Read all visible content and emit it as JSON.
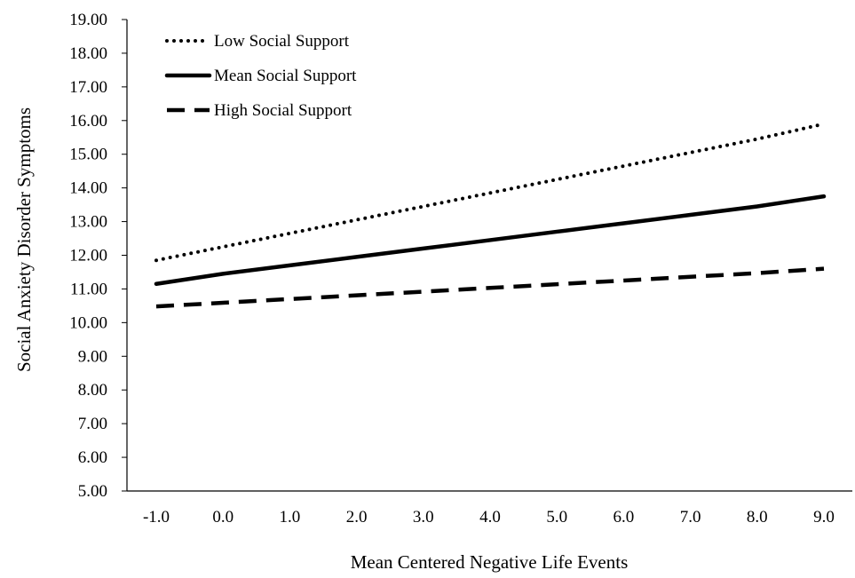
{
  "chart_data": {
    "type": "line",
    "title": "",
    "xlabel": "Mean Centered Negative Life Events",
    "ylabel": "Social Anxiety Disorder Symptoms",
    "x": [
      -1.0,
      0.0,
      1.0,
      2.0,
      3.0,
      4.0,
      5.0,
      6.0,
      7.0,
      8.0,
      9.0
    ],
    "x_tick_labels": [
      "-1.0",
      "0.0",
      "1.0",
      "2.0",
      "3.0",
      "4.0",
      "5.0",
      "6.0",
      "7.0",
      "8.0",
      "9.0"
    ],
    "y_tick_labels": [
      "5.00",
      "6.00",
      "7.00",
      "8.00",
      "9.00",
      "10.00",
      "11.00",
      "12.00",
      "13.00",
      "14.00",
      "15.00",
      "16.00",
      "17.00",
      "18.00",
      "19.00"
    ],
    "ylim": [
      5,
      19
    ],
    "grid": false,
    "legend_position": "top-left",
    "series": [
      {
        "name": "Low Social Support",
        "style": "dotted",
        "color": "#000000",
        "values": [
          11.85,
          12.25,
          12.65,
          13.05,
          13.45,
          13.85,
          14.25,
          14.65,
          15.05,
          15.45,
          15.9
        ]
      },
      {
        "name": "Mean Social Support",
        "style": "solid",
        "color": "#000000",
        "values": [
          11.15,
          11.45,
          11.7,
          11.95,
          12.2,
          12.45,
          12.7,
          12.95,
          13.2,
          13.45,
          13.75
        ]
      },
      {
        "name": "High Social Support",
        "style": "dashed",
        "color": "#000000",
        "values": [
          10.48,
          10.59,
          10.7,
          10.81,
          10.92,
          11.03,
          11.14,
          11.25,
          11.36,
          11.47,
          11.6
        ]
      }
    ]
  }
}
